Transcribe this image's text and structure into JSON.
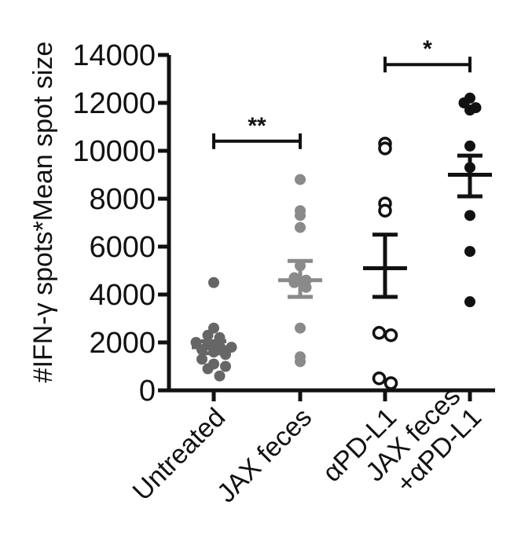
{
  "chart_data": {
    "type": "scatter",
    "ylabel": "#IFN-γ spots*Mean spot size",
    "ylim": [
      0,
      14000
    ],
    "yticks": [
      "0",
      "2000",
      "4000",
      "6000",
      "8000",
      "10000",
      "12000",
      "14000"
    ],
    "categories": [
      "Untreated",
      "JAX feces",
      "αPD-L1",
      "JAX feces\n+αPD-L1"
    ],
    "groups": [
      {
        "category": "Untreated",
        "color": "#666666",
        "marker": "filled",
        "points": [
          4500,
          2600,
          2300,
          2200,
          2000,
          1900,
          1850,
          1800,
          1700,
          1600,
          1500,
          1300,
          1100,
          1000,
          900,
          600
        ],
        "mean": 1800,
        "sem": [
          1550,
          2050
        ]
      },
      {
        "category": "JAX feces",
        "color": "#8a8a8a",
        "marker": "filled",
        "points": [
          8800,
          7500,
          7300,
          6800,
          5200,
          4700,
          4600,
          4500,
          4300,
          2600,
          1400,
          1200
        ],
        "mean": 4600,
        "sem": [
          3900,
          5400
        ]
      },
      {
        "category": "αPD-L1",
        "color": "#111111",
        "marker": "open",
        "points": [
          10300,
          10100,
          7800,
          7500,
          2400,
          2300,
          500,
          300
        ],
        "mean": 5100,
        "sem": [
          3900,
          6500
        ]
      },
      {
        "category": "JAX feces\n+αPD-L1",
        "color": "#111111",
        "marker": "filled",
        "points": [
          12200,
          12000,
          11800,
          11700,
          10200,
          9300,
          7300,
          5800,
          3700
        ],
        "mean": 9000,
        "sem": [
          8100,
          9800
        ]
      }
    ],
    "significance": [
      {
        "from": "Untreated",
        "to": "JAX feces",
        "y": 10400,
        "label": "**"
      },
      {
        "from": "αPD-L1",
        "to": "JAX feces\n+αPD-L1",
        "y": 13600,
        "label": "*"
      }
    ]
  }
}
